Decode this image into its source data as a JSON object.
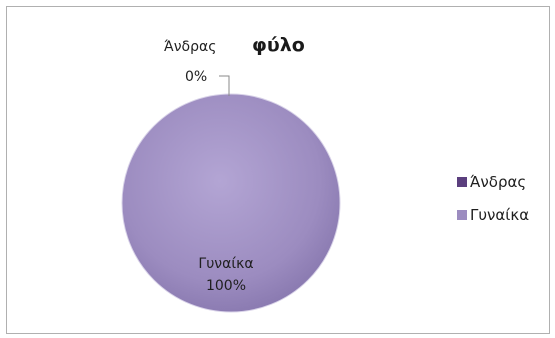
{
  "chart_data": {
    "type": "pie",
    "title": "φύλο",
    "categories": [
      "Άνδρας",
      "Γυναίκα"
    ],
    "values": [
      0,
      100
    ],
    "percent_labels": [
      "0%",
      "100%"
    ],
    "colors": [
      "#5b3f7e",
      "#9c8cc0"
    ],
    "legend": {
      "position": "right",
      "entries": [
        "Άνδρας",
        "Γυναίκα"
      ]
    }
  }
}
